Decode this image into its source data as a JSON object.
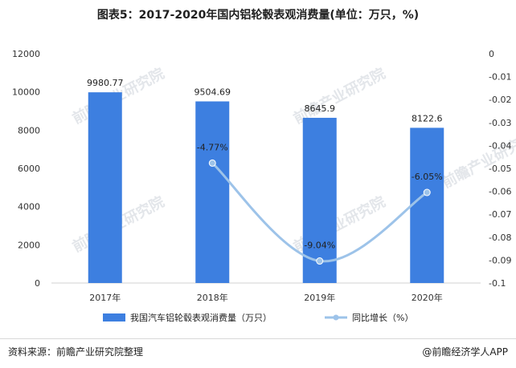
{
  "title": "图表5：2017-2020年国内铝轮毂表观消费量(单位：万只，%)",
  "source": "资料来源：前瞻产业研究院整理",
  "brand": "@前瞻经济学人APP",
  "watermark_text": "前瞻产业研究院",
  "colors": {
    "bar": "#3d7fe0",
    "line": "#9dc3e9",
    "axis": "#d0d0d0",
    "text": "#333333"
  },
  "chart_data": {
    "type": "bar",
    "categories": [
      "2017年",
      "2018年",
      "2019年",
      "2020年"
    ],
    "series": [
      {
        "name": "我国汽车铝轮毂表观消费量（万只）",
        "type": "bar",
        "axis": "left",
        "values": [
          9980.77,
          9504.69,
          8645.9,
          8122.6
        ],
        "labels": [
          "9980.77",
          "9504.69",
          "8645.9",
          "8122.6"
        ]
      },
      {
        "name": "同比增长（%）",
        "type": "line",
        "axis": "right",
        "values": [
          null,
          -0.0477,
          -0.0904,
          -0.0605
        ],
        "labels": [
          "",
          "-4.77%",
          "-9.04%",
          "-6.05%"
        ]
      }
    ],
    "y_left": {
      "min": 0,
      "max": 12000,
      "ticks": [
        "0",
        "2000",
        "4000",
        "6000",
        "8000",
        "10000",
        "12000"
      ]
    },
    "y_right": {
      "min": -0.1,
      "max": 0,
      "ticks": [
        "0",
        "-0.01",
        "-0.02",
        "-0.03",
        "-0.04",
        "-0.05",
        "-0.06",
        "-0.07",
        "-0.08",
        "-0.09",
        "-0.1"
      ]
    },
    "legend_position": "bottom",
    "grid": false
  }
}
